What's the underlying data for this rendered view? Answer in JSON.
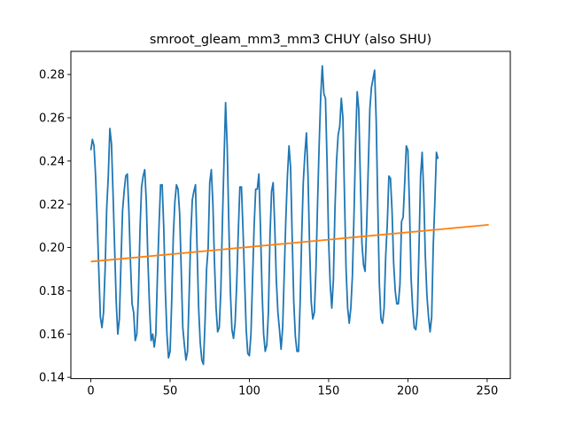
{
  "chart_data": {
    "type": "line",
    "title": "smroot_gleam_mm3_mm3 CHUY (also SHU)",
    "xlabel": "",
    "ylabel": "",
    "xlim": [
      -12.6,
      264.6
    ],
    "ylim": [
      0.1394,
      0.2907
    ],
    "x_ticks": [
      0,
      50,
      100,
      150,
      200,
      250
    ],
    "x_tick_labels": [
      "0",
      "50",
      "100",
      "150",
      "200",
      "250"
    ],
    "y_ticks": [
      0.14,
      0.16,
      0.18,
      0.2,
      0.22,
      0.24,
      0.26,
      0.28
    ],
    "y_tick_labels": [
      "0.14",
      "0.16",
      "0.18",
      "0.20",
      "0.22",
      "0.24",
      "0.26",
      "0.28"
    ],
    "grid": false,
    "legend": "none",
    "series": [
      {
        "color": "#1f77b4",
        "points": [
          [
            0,
            0.245
          ],
          [
            1,
            0.25
          ],
          [
            2,
            0.247
          ],
          [
            3,
            0.233
          ],
          [
            4,
            0.213
          ],
          [
            5,
            0.19
          ],
          [
            6,
            0.168
          ],
          [
            7,
            0.163
          ],
          [
            8,
            0.17
          ],
          [
            9,
            0.19
          ],
          [
            10,
            0.218
          ],
          [
            11,
            0.233
          ],
          [
            12,
            0.255
          ],
          [
            13,
            0.248
          ],
          [
            14,
            0.225
          ],
          [
            15,
            0.2
          ],
          [
            16,
            0.175
          ],
          [
            17,
            0.16
          ],
          [
            18,
            0.167
          ],
          [
            19,
            0.193
          ],
          [
            20,
            0.217
          ],
          [
            21,
            0.226
          ],
          [
            22,
            0.233
          ],
          [
            23,
            0.234
          ],
          [
            24,
            0.217
          ],
          [
            25,
            0.193
          ],
          [
            26,
            0.174
          ],
          [
            27,
            0.17
          ],
          [
            28,
            0.157
          ],
          [
            29,
            0.16
          ],
          [
            30,
            0.178
          ],
          [
            31,
            0.208
          ],
          [
            32,
            0.228
          ],
          [
            33,
            0.233
          ],
          [
            34,
            0.236
          ],
          [
            35,
            0.221
          ],
          [
            36,
            0.194
          ],
          [
            37,
            0.173
          ],
          [
            38,
            0.157
          ],
          [
            39,
            0.16
          ],
          [
            40,
            0.154
          ],
          [
            41,
            0.16
          ],
          [
            42,
            0.187
          ],
          [
            43,
            0.21
          ],
          [
            44,
            0.229
          ],
          [
            45,
            0.229
          ],
          [
            46,
            0.209
          ],
          [
            47,
            0.18
          ],
          [
            48,
            0.16
          ],
          [
            49,
            0.149
          ],
          [
            50,
            0.152
          ],
          [
            51,
            0.175
          ],
          [
            52,
            0.205
          ],
          [
            53,
            0.221
          ],
          [
            54,
            0.229
          ],
          [
            55,
            0.227
          ],
          [
            56,
            0.216
          ],
          [
            57,
            0.19
          ],
          [
            58,
            0.163
          ],
          [
            59,
            0.155
          ],
          [
            60,
            0.148
          ],
          [
            61,
            0.152
          ],
          [
            62,
            0.178
          ],
          [
            63,
            0.205
          ],
          [
            64,
            0.222
          ],
          [
            65,
            0.226
          ],
          [
            66,
            0.229
          ],
          [
            67,
            0.2
          ],
          [
            68,
            0.172
          ],
          [
            69,
            0.156
          ],
          [
            70,
            0.148
          ],
          [
            71,
            0.146
          ],
          [
            72,
            0.165
          ],
          [
            73,
            0.19
          ],
          [
            74,
            0.2
          ],
          [
            75,
            0.23
          ],
          [
            76,
            0.236
          ],
          [
            77,
            0.22
          ],
          [
            78,
            0.193
          ],
          [
            79,
            0.172
          ],
          [
            80,
            0.161
          ],
          [
            81,
            0.163
          ],
          [
            82,
            0.18
          ],
          [
            83,
            0.212
          ],
          [
            84,
            0.24
          ],
          [
            85,
            0.267
          ],
          [
            86,
            0.247
          ],
          [
            87,
            0.212
          ],
          [
            88,
            0.18
          ],
          [
            89,
            0.162
          ],
          [
            90,
            0.158
          ],
          [
            91,
            0.165
          ],
          [
            92,
            0.183
          ],
          [
            93,
            0.207
          ],
          [
            94,
            0.228
          ],
          [
            95,
            0.228
          ],
          [
            96,
            0.208
          ],
          [
            97,
            0.185
          ],
          [
            98,
            0.162
          ],
          [
            99,
            0.151
          ],
          [
            100,
            0.15
          ],
          [
            101,
            0.16
          ],
          [
            102,
            0.185
          ],
          [
            103,
            0.21
          ],
          [
            104,
            0.227
          ],
          [
            105,
            0.227
          ],
          [
            106,
            0.234
          ],
          [
            107,
            0.209
          ],
          [
            108,
            0.18
          ],
          [
            109,
            0.16
          ],
          [
            110,
            0.152
          ],
          [
            111,
            0.155
          ],
          [
            112,
            0.17
          ],
          [
            113,
            0.205
          ],
          [
            114,
            0.226
          ],
          [
            115,
            0.23
          ],
          [
            116,
            0.21
          ],
          [
            117,
            0.185
          ],
          [
            118,
            0.17
          ],
          [
            119,
            0.162
          ],
          [
            120,
            0.153
          ],
          [
            121,
            0.163
          ],
          [
            122,
            0.188
          ],
          [
            123,
            0.213
          ],
          [
            124,
            0.233
          ],
          [
            125,
            0.247
          ],
          [
            126,
            0.237
          ],
          [
            127,
            0.205
          ],
          [
            128,
            0.175
          ],
          [
            129,
            0.159
          ],
          [
            130,
            0.152
          ],
          [
            131,
            0.152
          ],
          [
            132,
            0.174
          ],
          [
            133,
            0.205
          ],
          [
            134,
            0.23
          ],
          [
            135,
            0.243
          ],
          [
            136,
            0.253
          ],
          [
            137,
            0.233
          ],
          [
            138,
            0.2
          ],
          [
            139,
            0.175
          ],
          [
            140,
            0.167
          ],
          [
            141,
            0.17
          ],
          [
            142,
            0.19
          ],
          [
            143,
            0.22
          ],
          [
            144,
            0.247
          ],
          [
            145,
            0.27
          ],
          [
            146,
            0.284
          ],
          [
            147,
            0.271
          ],
          [
            148,
            0.269
          ],
          [
            149,
            0.24
          ],
          [
            150,
            0.203
          ],
          [
            151,
            0.183
          ],
          [
            152,
            0.172
          ],
          [
            153,
            0.185
          ],
          [
            154,
            0.218
          ],
          [
            155,
            0.24
          ],
          [
            156,
            0.252
          ],
          [
            157,
            0.256
          ],
          [
            158,
            0.269
          ],
          [
            159,
            0.26
          ],
          [
            160,
            0.224
          ],
          [
            161,
            0.19
          ],
          [
            162,
            0.172
          ],
          [
            163,
            0.165
          ],
          [
            164,
            0.172
          ],
          [
            165,
            0.187
          ],
          [
            166,
            0.215
          ],
          [
            167,
            0.248
          ],
          [
            168,
            0.272
          ],
          [
            169,
            0.264
          ],
          [
            170,
            0.232
          ],
          [
            171,
            0.202
          ],
          [
            172,
            0.192
          ],
          [
            173,
            0.189
          ],
          [
            174,
            0.21
          ],
          [
            175,
            0.237
          ],
          [
            176,
            0.264
          ],
          [
            177,
            0.274
          ],
          [
            178,
            0.278
          ],
          [
            179,
            0.282
          ],
          [
            180,
            0.259
          ],
          [
            181,
            0.22
          ],
          [
            182,
            0.183
          ],
          [
            183,
            0.167
          ],
          [
            184,
            0.165
          ],
          [
            185,
            0.172
          ],
          [
            186,
            0.196
          ],
          [
            187,
            0.211
          ],
          [
            188,
            0.233
          ],
          [
            189,
            0.232
          ],
          [
            190,
            0.217
          ],
          [
            191,
            0.193
          ],
          [
            192,
            0.18
          ],
          [
            193,
            0.174
          ],
          [
            194,
            0.174
          ],
          [
            195,
            0.183
          ],
          [
            196,
            0.212
          ],
          [
            197,
            0.214
          ],
          [
            198,
            0.23
          ],
          [
            199,
            0.247
          ],
          [
            200,
            0.245
          ],
          [
            201,
            0.219
          ],
          [
            202,
            0.186
          ],
          [
            203,
            0.172
          ],
          [
            204,
            0.163
          ],
          [
            205,
            0.162
          ],
          [
            206,
            0.17
          ],
          [
            207,
            0.2
          ],
          [
            208,
            0.233
          ],
          [
            209,
            0.244
          ],
          [
            210,
            0.225
          ],
          [
            211,
            0.196
          ],
          [
            212,
            0.178
          ],
          [
            213,
            0.168
          ],
          [
            214,
            0.161
          ],
          [
            215,
            0.168
          ],
          [
            216,
            0.201
          ],
          [
            217,
            0.221
          ],
          [
            218,
            0.244
          ],
          [
            219,
            0.241
          ]
        ]
      },
      {
        "color": "#ff7f0e",
        "points": [
          [
            0,
            0.1935
          ],
          [
            251,
            0.2105
          ]
        ]
      }
    ]
  }
}
